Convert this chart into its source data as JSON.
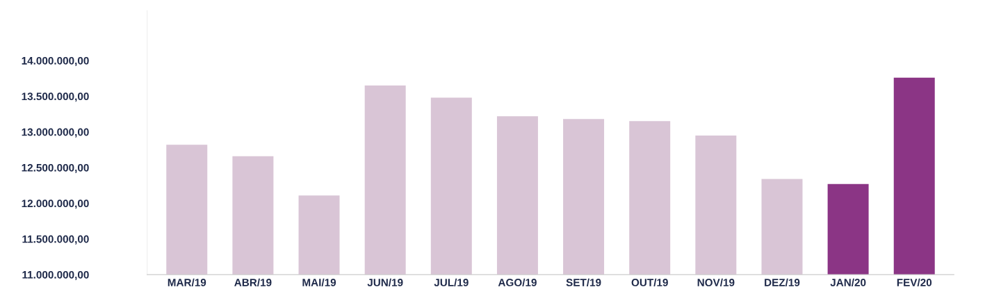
{
  "chart_data": {
    "type": "bar",
    "categories": [
      "MAR/19",
      "ABR/19",
      "MAI/19",
      "JUN/19",
      "JUL/19",
      "AGO/19",
      "SET/19",
      "OUT/19",
      "NOV/19",
      "DEZ/19",
      "JAN/20",
      "FEV/20"
    ],
    "values": [
      12820000,
      12660000,
      12110000,
      13650000,
      13480000,
      13220000,
      13180000,
      13150000,
      12950000,
      12340000,
      12270000,
      13760000
    ],
    "colors": [
      "#d9c5d6",
      "#d9c5d6",
      "#d9c5d6",
      "#d9c5d6",
      "#d9c5d6",
      "#d9c5d6",
      "#d9c5d6",
      "#d9c5d6",
      "#d9c5d6",
      "#d9c5d6",
      "#8b3585",
      "#8b3585"
    ],
    "ylim": [
      11000000,
      14700000
    ],
    "yticks": [
      {
        "value": 11000000,
        "label": "11.000.000,00"
      },
      {
        "value": 11500000,
        "label": "11.500.000,00"
      },
      {
        "value": 12000000,
        "label": "12.000.000,00"
      },
      {
        "value": 12500000,
        "label": "12.500.000,00"
      },
      {
        "value": 13000000,
        "label": "13.000.000,00"
      },
      {
        "value": 13500000,
        "label": "13.500.000,00"
      },
      {
        "value": 14000000,
        "label": "14.000.000,00"
      }
    ],
    "grid": false,
    "legend": false
  }
}
